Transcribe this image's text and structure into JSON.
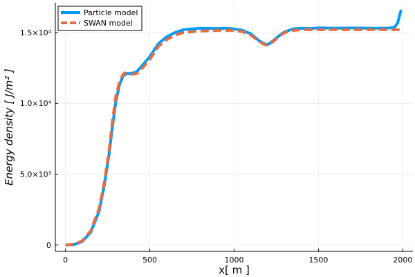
{
  "chart_data": {
    "type": "line",
    "title": "",
    "xlabel": "x[ m ]",
    "ylabel": "Energy density [ J/m² ]",
    "xlim": [
      -60,
      2060
    ],
    "ylim": [
      -450,
      17100
    ],
    "xticks": [
      0,
      500,
      1000,
      1500,
      2000
    ],
    "xtick_labels": [
      "0",
      "500",
      "1000",
      "1500",
      "2000"
    ],
    "yticks": [
      0,
      5000,
      10000,
      15000
    ],
    "ytick_labels": [
      "0",
      "5.0×10³",
      "1.0×10⁴",
      "1.5×10⁴"
    ],
    "grid": true,
    "legend_position": "top-left",
    "series": [
      {
        "name": "Particle model",
        "color": "#009af9",
        "style": "solid",
        "x": [
          0,
          50,
          100,
          150,
          200,
          230,
          260,
          280,
          300,
          320,
          340,
          360,
          380,
          400,
          420,
          450,
          500,
          550,
          600,
          650,
          700,
          800,
          900,
          950,
          1000,
          1050,
          1100,
          1150,
          1180,
          1200,
          1230,
          1270,
          1300,
          1350,
          1400,
          1450,
          1500,
          1600,
          1700,
          1800,
          1900,
          1950,
          1970,
          1990
        ],
        "values": [
          0,
          30,
          250,
          900,
          2400,
          4200,
          6500,
          8500,
          10200,
          11300,
          11900,
          12100,
          12100,
          12150,
          12200,
          12600,
          13300,
          14200,
          14700,
          15000,
          15200,
          15300,
          15280,
          15300,
          15250,
          15150,
          14900,
          14400,
          14200,
          14150,
          14400,
          14800,
          15050,
          15250,
          15300,
          15280,
          15330,
          15300,
          15320,
          15300,
          15300,
          15350,
          15700,
          16600
        ]
      },
      {
        "name": "SWAN model",
        "color": "#e26f46",
        "style": "dashed",
        "x": [
          0,
          50,
          100,
          150,
          200,
          230,
          260,
          280,
          300,
          320,
          340,
          350,
          370,
          400,
          430,
          450,
          500,
          550,
          600,
          650,
          700,
          800,
          900,
          1000,
          1050,
          1100,
          1150,
          1180,
          1200,
          1230,
          1270,
          1300,
          1350,
          1400,
          1450,
          1500,
          1600,
          1700,
          1800,
          1900,
          2000
        ],
        "values": [
          0,
          50,
          300,
          1000,
          2600,
          4400,
          6800,
          8900,
          10600,
          11500,
          12000,
          12150,
          12100,
          12050,
          12150,
          12400,
          13100,
          14000,
          14500,
          14800,
          15000,
          15100,
          15150,
          15150,
          15050,
          14800,
          14350,
          14150,
          14100,
          14350,
          14750,
          15000,
          15150,
          15200,
          15200,
          15200,
          15200,
          15200,
          15200,
          15200,
          15200
        ]
      }
    ]
  }
}
